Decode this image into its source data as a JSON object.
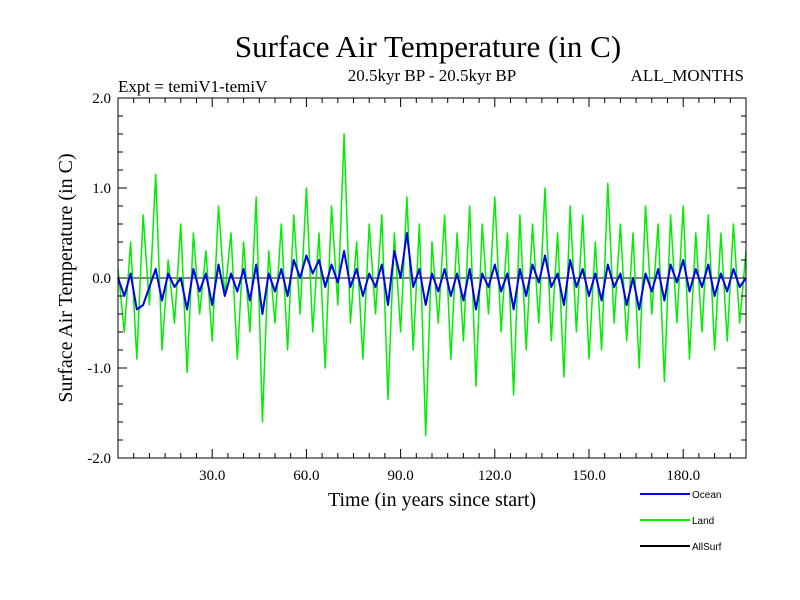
{
  "chart_data": {
    "type": "line",
    "title": "Surface Air Temperature (in C)",
    "subtitle_left": "Expt = temiV1-temiV",
    "subtitle_center": "20.5kyr BP - 20.5kyr BP",
    "subtitle_right": "ALL_MONTHS",
    "xlabel": "Time (in years since start)",
    "ylabel": "Surface Air Temperature (in C)",
    "xlim": [
      0,
      200
    ],
    "ylim": [
      -2.0,
      2.0
    ],
    "xticks": [
      30,
      60,
      90,
      120,
      150,
      180
    ],
    "xtick_labels": [
      "30.0",
      "60.0",
      "90.0",
      "120.0",
      "150.0",
      "180.0"
    ],
    "yticks": [
      -2,
      -1,
      0,
      1,
      2
    ],
    "ytick_labels": [
      "-2.0",
      "-1.0",
      "0.0",
      "1.0",
      "2.0"
    ],
    "zero_line": true,
    "legend_position": "bottom-right",
    "series": [
      {
        "name": "Land",
        "color": "#00ee00",
        "x": [
          0,
          2,
          4,
          6,
          8,
          10,
          12,
          14,
          16,
          18,
          20,
          22,
          24,
          26,
          28,
          30,
          32,
          34,
          36,
          38,
          40,
          42,
          44,
          46,
          48,
          50,
          52,
          54,
          56,
          58,
          60,
          62,
          64,
          66,
          68,
          70,
          72,
          74,
          76,
          78,
          80,
          82,
          84,
          86,
          88,
          90,
          92,
          94,
          96,
          98,
          100,
          102,
          104,
          106,
          108,
          110,
          112,
          114,
          116,
          118,
          120,
          122,
          124,
          126,
          128,
          130,
          132,
          134,
          136,
          138,
          140,
          142,
          144,
          146,
          148,
          150,
          152,
          154,
          156,
          158,
          160,
          162,
          164,
          166,
          168,
          170,
          172,
          174,
          176,
          178,
          180,
          182,
          184,
          186,
          188,
          190,
          192,
          194,
          196,
          198,
          200
        ],
        "values": [
          0.1,
          -0.6,
          0.4,
          -0.9,
          0.7,
          -0.3,
          1.15,
          -0.8,
          0.2,
          -0.5,
          0.6,
          -1.05,
          0.5,
          -0.4,
          0.3,
          -0.7,
          0.8,
          -0.2,
          0.5,
          -0.9,
          0.4,
          -0.6,
          0.9,
          -1.6,
          0.3,
          -0.5,
          0.6,
          -0.8,
          0.7,
          -0.4,
          1.0,
          -0.6,
          0.5,
          -1.0,
          0.8,
          -0.3,
          1.6,
          -0.5,
          0.4,
          -0.9,
          0.6,
          -0.4,
          0.7,
          -1.35,
          0.5,
          -0.6,
          0.9,
          -0.8,
          0.6,
          -1.75,
          0.4,
          -0.5,
          0.7,
          -0.9,
          0.5,
          -0.7,
          0.8,
          -1.2,
          0.6,
          -0.4,
          0.9,
          -0.6,
          0.5,
          -1.3,
          0.7,
          -0.8,
          0.6,
          -0.5,
          1.0,
          -0.7,
          0.5,
          -1.1,
          0.8,
          -0.6,
          0.7,
          -0.9,
          0.4,
          -0.8,
          1.05,
          -0.5,
          0.6,
          -0.7,
          0.5,
          -1.0,
          0.8,
          -0.4,
          0.6,
          -1.15,
          0.7,
          -0.5,
          0.8,
          -0.9,
          0.5,
          -0.6,
          0.7,
          -0.8,
          0.5,
          -0.7,
          0.6,
          -0.5,
          0.3
        ]
      },
      {
        "name": "Ocean",
        "color": "#0000ee",
        "x": [
          0,
          2,
          4,
          6,
          8,
          10,
          12,
          14,
          16,
          18,
          20,
          22,
          24,
          26,
          28,
          30,
          32,
          34,
          36,
          38,
          40,
          42,
          44,
          46,
          48,
          50,
          52,
          54,
          56,
          58,
          60,
          62,
          64,
          66,
          68,
          70,
          72,
          74,
          76,
          78,
          80,
          82,
          84,
          86,
          88,
          90,
          92,
          94,
          96,
          98,
          100,
          102,
          104,
          106,
          108,
          110,
          112,
          114,
          116,
          118,
          120,
          122,
          124,
          126,
          128,
          130,
          132,
          134,
          136,
          138,
          140,
          142,
          144,
          146,
          148,
          150,
          152,
          154,
          156,
          158,
          160,
          162,
          164,
          166,
          168,
          170,
          172,
          174,
          176,
          178,
          180,
          182,
          184,
          186,
          188,
          190,
          192,
          194,
          196,
          198,
          200
        ],
        "values": [
          0.0,
          -0.2,
          0.05,
          -0.35,
          -0.3,
          -0.1,
          0.1,
          -0.25,
          0.05,
          -0.1,
          0.0,
          -0.35,
          0.1,
          -0.15,
          0.05,
          -0.3,
          0.15,
          -0.2,
          0.05,
          -0.15,
          0.1,
          -0.25,
          0.15,
          -0.4,
          0.05,
          -0.15,
          0.1,
          -0.2,
          0.2,
          0.0,
          0.25,
          0.05,
          0.2,
          -0.1,
          0.15,
          -0.05,
          0.3,
          -0.1,
          0.1,
          -0.2,
          0.05,
          -0.1,
          0.15,
          -0.3,
          0.3,
          0.0,
          0.5,
          -0.1,
          0.1,
          -0.3,
          0.05,
          -0.15,
          0.1,
          -0.2,
          0.05,
          -0.25,
          0.1,
          -0.35,
          0.05,
          -0.1,
          0.15,
          -0.15,
          0.05,
          -0.35,
          0.1,
          -0.2,
          0.15,
          -0.05,
          0.25,
          -0.1,
          0.05,
          -0.3,
          0.2,
          -0.1,
          0.1,
          -0.2,
          0.05,
          -0.25,
          0.15,
          -0.1,
          0.05,
          -0.3,
          0.0,
          -0.35,
          0.05,
          -0.15,
          0.1,
          -0.25,
          0.15,
          -0.05,
          0.2,
          -0.15,
          0.1,
          -0.1,
          0.15,
          -0.2,
          0.05,
          -0.15,
          0.1,
          -0.1,
          0.0
        ]
      },
      {
        "name": "AllSurf",
        "color": "#000000",
        "x": [],
        "values": []
      }
    ]
  }
}
